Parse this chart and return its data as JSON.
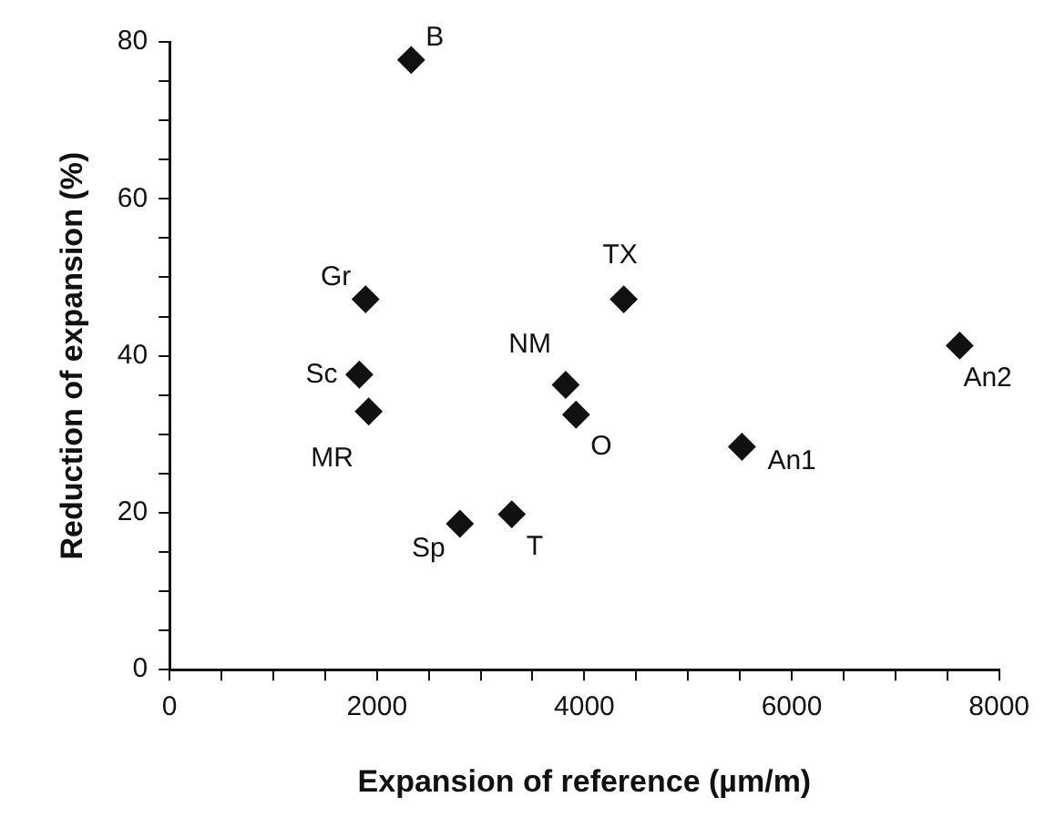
{
  "chart_data": {
    "type": "scatter",
    "xlabel": "Expansion of reference (µm/m)",
    "ylabel": "Reduction of expansion (%)",
    "x": [
      2330,
      1890,
      4380,
      1830,
      7620,
      3820,
      1920,
      3920,
      5520,
      2800,
      3300
    ],
    "values": [
      77.7,
      47.2,
      47.2,
      37.6,
      41.3,
      36.3,
      32.9,
      32.5,
      28.4,
      18.6,
      19.8
    ],
    "color": "#111111",
    "marker": "diamond",
    "grid": false,
    "legend": false,
    "xlim": [
      0,
      8000
    ],
    "ylim": [
      0,
      80
    ],
    "xticks": [
      0,
      {
        "value": 500,
        "label": null
      },
      {
        "value": 1000,
        "label": null
      },
      {
        "value": 1500,
        "label": null
      },
      2000,
      {
        "value": 2500,
        "label": null
      },
      {
        "value": 3000,
        "label": null
      },
      {
        "value": 3500,
        "label": null
      },
      4000,
      {
        "value": 4500,
        "label": null
      },
      {
        "value": 5000,
        "label": null
      },
      {
        "value": 5500,
        "label": null
      },
      6000,
      {
        "value": 6500,
        "label": null
      },
      {
        "value": 7000,
        "label": null
      },
      {
        "value": 7500,
        "label": null
      },
      8000
    ],
    "yticks": [
      0,
      {
        "value": 5,
        "label": null
      },
      {
        "value": 10,
        "label": null
      },
      {
        "value": 15,
        "label": null
      },
      20,
      {
        "value": 25,
        "label": null
      },
      {
        "value": 30,
        "label": null
      },
      {
        "value": 35,
        "label": null
      },
      40,
      {
        "value": 45,
        "label": null
      },
      {
        "value": 50,
        "label": null
      },
      {
        "value": 55,
        "label": null
      },
      60,
      {
        "value": 65,
        "label": null
      },
      {
        "value": 70,
        "label": null
      },
      {
        "value": 75,
        "label": null
      },
      80
    ],
    "annotations": [
      {
        "text": "B",
        "x": 2330,
        "y": 77.7
      },
      {
        "text": "Gr",
        "x": 1890,
        "y": 47.2
      },
      {
        "text": "TX",
        "x": 4380,
        "y": 47.2
      },
      {
        "text": "Sc",
        "x": 1830,
        "y": 37.6
      },
      {
        "text": "An2",
        "x": 7620,
        "y": 41.3
      },
      {
        "text": "NM",
        "x": 3820,
        "y": 36.3
      },
      {
        "text": "MR",
        "x": 1920,
        "y": 32.9
      },
      {
        "text": "O",
        "x": 3920,
        "y": 32.5
      },
      {
        "text": "An1",
        "x": 5520,
        "y": 28.4
      },
      {
        "text": "Sp",
        "x": 2800,
        "y": 18.6
      },
      {
        "text": "T",
        "x": 3300,
        "y": 19.8
      }
    ]
  }
}
